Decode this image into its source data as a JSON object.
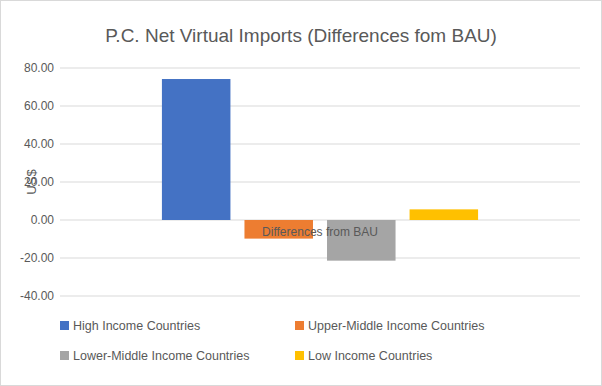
{
  "chart_data": {
    "type": "bar",
    "title": "P.C. Net Virtual Imports (Differences fom BAU)",
    "y_label": "US$",
    "categories": [
      "Differences from BAU"
    ],
    "series": [
      {
        "name": "High Income Countries",
        "color": "#4472c4",
        "values": [
          74.2
        ]
      },
      {
        "name": "Upper-Middle Income Countries",
        "color": "#ed7d31",
        "values": [
          -9.8
        ]
      },
      {
        "name": "Lower-Middle Income Countries",
        "color": "#a5a5a5",
        "values": [
          -21.4
        ]
      },
      {
        "name": "Low Income Countries",
        "color": "#ffc000",
        "values": [
          5.6
        ]
      }
    ],
    "ylim": [
      -40,
      80
    ],
    "yticks": [
      {
        "value": -40,
        "label": "-40.00"
      },
      {
        "value": -20,
        "label": "-20.00"
      },
      {
        "value": 0,
        "label": "0.00"
      },
      {
        "value": 20,
        "label": "20.00"
      },
      {
        "value": 40,
        "label": "40.00"
      },
      {
        "value": 60,
        "label": "60.00"
      },
      {
        "value": 80,
        "label": "80.00"
      }
    ],
    "grid": true,
    "legend": "bottom"
  }
}
